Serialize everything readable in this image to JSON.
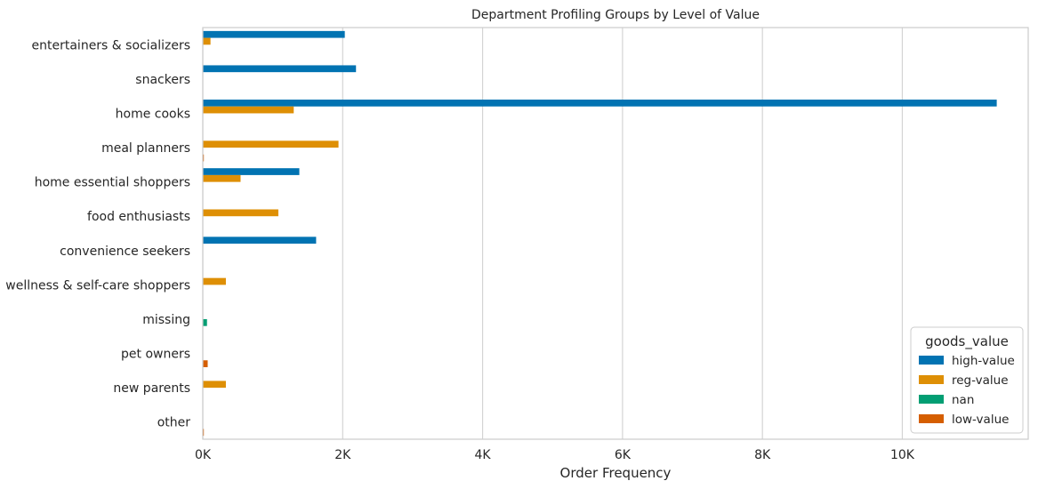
{
  "chart_data": {
    "type": "bar",
    "orientation": "horizontal",
    "title": "Department Profiling Groups by Level of Value",
    "xlabel": "Order Frequency",
    "ylabel": "",
    "xlim": [
      0,
      11800
    ],
    "x_ticks": [
      0,
      2000,
      4000,
      6000,
      8000,
      10000
    ],
    "x_tick_labels": [
      "0K",
      "2K",
      "4K",
      "6K",
      "8K",
      "10K"
    ],
    "grid": "vertical",
    "legend_position": "bottom-right",
    "legend_title": "goods_value",
    "categories": [
      "entertainers & socializers",
      "snackers",
      "home cooks",
      "meal planners",
      "home essential shoppers",
      "food enthusiasts",
      "convenience seekers",
      "wellness & self-care shoppers",
      "missing",
      "pet owners",
      "new parents",
      "other"
    ],
    "series": [
      {
        "name": "high-value",
        "color": "#0173b2",
        "values": [
          2030,
          2190,
          11350,
          0,
          1380,
          0,
          1620,
          0,
          0,
          0,
          0,
          0
        ]
      },
      {
        "name": "reg-value",
        "color": "#de8f05",
        "values": [
          110,
          0,
          1300,
          1940,
          540,
          1080,
          0,
          330,
          0,
          0,
          330,
          0
        ]
      },
      {
        "name": "nan",
        "color": "#029e73",
        "values": [
          0,
          0,
          0,
          0,
          0,
          0,
          0,
          0,
          60,
          0,
          0,
          0
        ]
      },
      {
        "name": "low-value",
        "color": "#d55e00",
        "values": [
          0,
          0,
          0,
          15,
          0,
          0,
          0,
          0,
          0,
          70,
          0,
          15
        ]
      }
    ]
  }
}
